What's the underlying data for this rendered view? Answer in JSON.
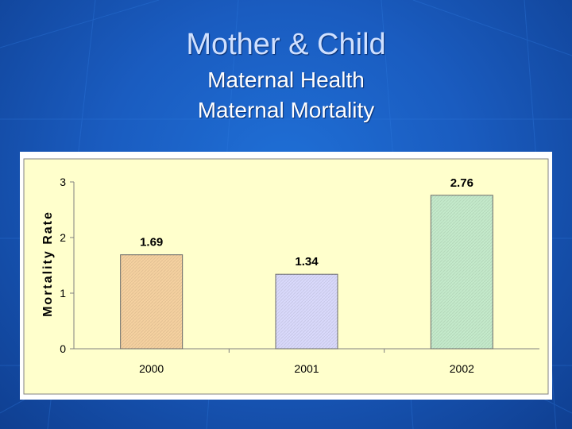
{
  "slide": {
    "title": "Mother & Child",
    "subtitle_line1": "Maternal Health",
    "subtitle_line2": "Maternal Mortality"
  },
  "colors": {
    "background": "#1a5cc0",
    "plot_area": "#ffffcc",
    "bar_2000": "#f5d1a0",
    "bar_2001": "#d9d9fb",
    "bar_2002": "#c4eacb"
  },
  "chart_data": {
    "type": "bar",
    "title": "",
    "xlabel": "",
    "ylabel": "Mortality Rate",
    "categories": [
      "2000",
      "2001",
      "2002"
    ],
    "values": [
      1.69,
      1.34,
      2.76
    ],
    "value_labels": [
      "1.69",
      "1.34",
      "2.76"
    ],
    "ylim": [
      0,
      3
    ],
    "yticks": [
      "0",
      "1",
      "2",
      "3"
    ],
    "grid": false,
    "legend": "none"
  }
}
